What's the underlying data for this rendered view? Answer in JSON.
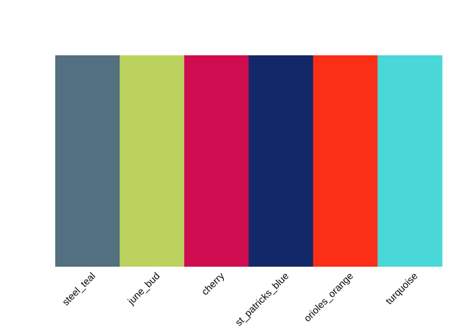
{
  "chart_data": {
    "type": "heatmap",
    "title": "",
    "xlabel": "",
    "ylabel": "",
    "categories": [
      "steel_teal",
      "june_bud",
      "cherry",
      "st_patricks_blue",
      "orioles_orange",
      "turquoise"
    ],
    "colors": [
      "#52707F",
      "#BBD35E",
      "#D00C50",
      "#132868",
      "#FB2F17",
      "#4AD7D7"
    ],
    "grid": false,
    "legend": "none"
  }
}
